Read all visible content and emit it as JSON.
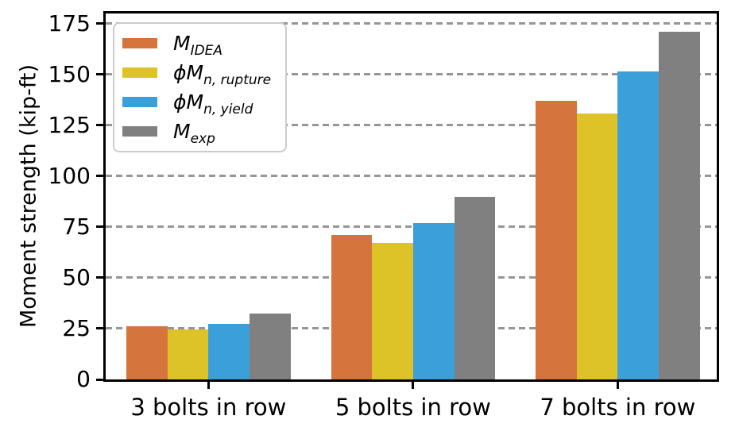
{
  "chart_data": {
    "type": "bar",
    "title": "",
    "xlabel": "",
    "ylabel": "Moment strength (kip-ft)",
    "categories": [
      "3 bolts in row",
      "5 bolts in row",
      "7 bolts in row"
    ],
    "series": [
      {
        "name": "M_IDEA",
        "label_main": "M",
        "label_sub": "IDEA",
        "color": "#D5743C",
        "values": [
          26,
          71,
          137
        ]
      },
      {
        "name": "phi_Mn_rupture",
        "label_main": "ϕM",
        "label_sub": "n, rupture",
        "color": "#DEC328",
        "values": [
          24.5,
          67,
          131
        ]
      },
      {
        "name": "phi_Mn_yield",
        "label_main": "ϕM",
        "label_sub": "n, yield",
        "color": "#3BA0DA",
        "values": [
          27.5,
          77,
          151.5
        ]
      },
      {
        "name": "M_exp",
        "label_main": "M",
        "label_sub": "exp",
        "color": "#808080",
        "values": [
          32.5,
          90,
          171
        ]
      }
    ],
    "yticks": [
      0,
      25,
      50,
      75,
      100,
      125,
      150,
      175
    ],
    "ylim": [
      0,
      180
    ],
    "grid": {
      "axis": "y",
      "style": "dashed",
      "color": "#969696",
      "behind_bars": true
    },
    "legend_position": "upper left",
    "colors": {
      "axis": "#000000",
      "background": "#ffffff",
      "gridline": "#969696"
    }
  }
}
